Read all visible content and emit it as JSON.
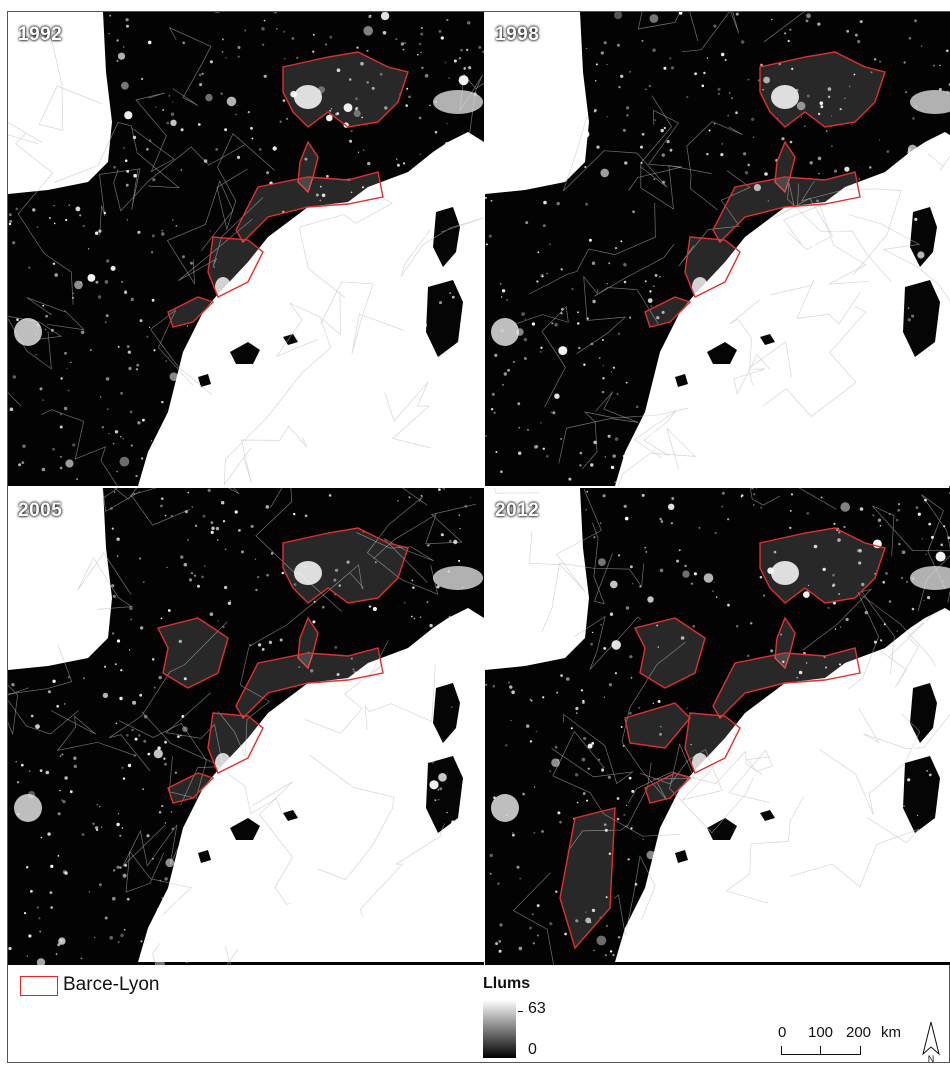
{
  "panels": [
    {
      "year": "1992"
    },
    {
      "year": "1998"
    },
    {
      "year": "2005"
    },
    {
      "year": "2012"
    }
  ],
  "legend": {
    "region_label": "Barce-Lyon",
    "region_color": "#e03030",
    "ramp_title": "Llums",
    "ramp_max": "63",
    "ramp_min": "0"
  },
  "scale": {
    "ticks": [
      "0",
      "100",
      "200"
    ],
    "unit": "km"
  },
  "north_arrow": {
    "letter": "N",
    "icon": "north-arrow-icon"
  }
}
